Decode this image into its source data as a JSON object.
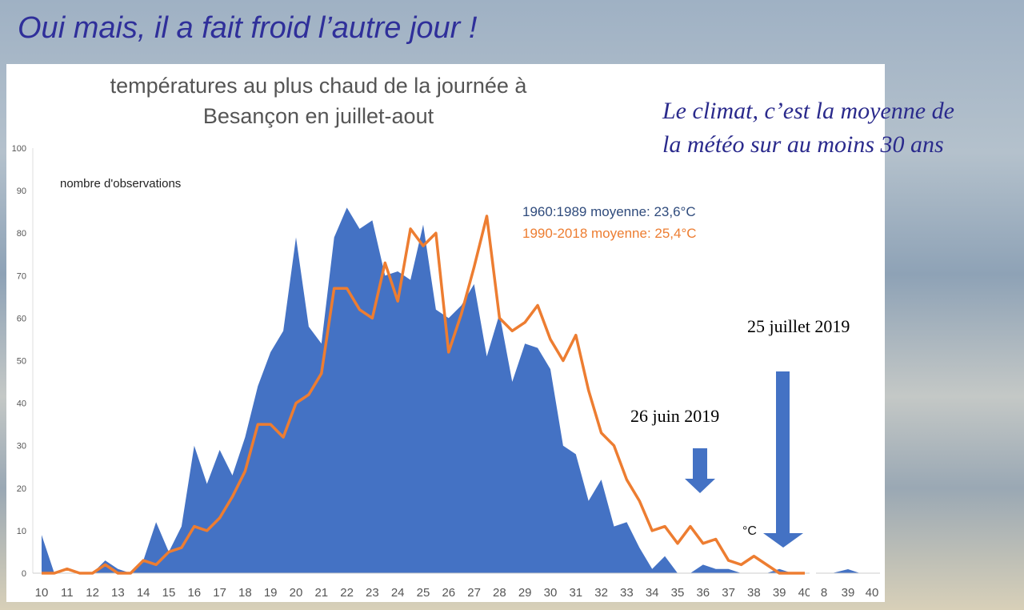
{
  "slide": {
    "title": "Oui mais, il a fait froid l’autre jour !",
    "quote_line1": "Le climat, c’est la moyenne de",
    "quote_line2": "la météo sur au moins 30 ans"
  },
  "chart_data": {
    "type": "area",
    "title_line1": "températures au plus chaud de la journée à",
    "title_line2": "Besançon en juillet-aout",
    "ylabel": "nombre d'observations",
    "xlabel": "°C",
    "ylim": [
      0,
      100
    ],
    "yticks": [
      0,
      10,
      20,
      30,
      40,
      50,
      60,
      70,
      80,
      90,
      100
    ],
    "xticks": [
      10,
      11,
      12,
      13,
      14,
      15,
      16,
      17,
      18,
      19,
      20,
      21,
      22,
      23,
      24,
      25,
      26,
      27,
      28,
      29,
      30,
      31,
      32,
      33,
      34,
      35,
      36,
      37,
      38,
      39,
      40
    ],
    "x": [
      10,
      10.5,
      11,
      11.5,
      12,
      12.5,
      13,
      13.5,
      14,
      14.5,
      15,
      15.5,
      16,
      16.5,
      17,
      17.5,
      18,
      18.5,
      19,
      19.5,
      20,
      20.5,
      21,
      21.5,
      22,
      22.5,
      23,
      23.5,
      24,
      24.5,
      25,
      25.5,
      26,
      26.5,
      27,
      27.5,
      28,
      28.5,
      29,
      29.5,
      30,
      30.5,
      31,
      31.5,
      32,
      32.5,
      33,
      33.5,
      34,
      34.5,
      35,
      35.5,
      36,
      36.5,
      37,
      37.5,
      38,
      38.5,
      39,
      39.5,
      40
    ],
    "series": [
      {
        "name": "1960:1989 moyenne: 23,6°C",
        "type": "area",
        "color": "#4472c4",
        "values": [
          9,
          0,
          0,
          0,
          0,
          3,
          1,
          0,
          3,
          12,
          5,
          11,
          30,
          21,
          29,
          23,
          32,
          44,
          52,
          57,
          79,
          58,
          54,
          79,
          86,
          81,
          83,
          70,
          71,
          69,
          82,
          62,
          60,
          63,
          68,
          51,
          61,
          45,
          54,
          53,
          48,
          30,
          28,
          17,
          22,
          11,
          12,
          6,
          1,
          4,
          0,
          0,
          2,
          1,
          1,
          0,
          0,
          0,
          1,
          0,
          0
        ]
      },
      {
        "name": "1990-2018 moyenne: 25,4°C",
        "type": "line",
        "color": "#ed7d31",
        "values": [
          0,
          0,
          1,
          0,
          0,
          2,
          0,
          0,
          3,
          2,
          5,
          6,
          11,
          10,
          13,
          18,
          24,
          35,
          35,
          32,
          40,
          42,
          47,
          67,
          67,
          62,
          60,
          73,
          64,
          81,
          77,
          80,
          52,
          61,
          72,
          84,
          60,
          57,
          59,
          63,
          55,
          50,
          56,
          43,
          33,
          30,
          22,
          17,
          10,
          11,
          7,
          11,
          7,
          8,
          3,
          2,
          4,
          2,
          0,
          0,
          0
        ]
      }
    ],
    "annotations": [
      {
        "text": "26 juin 2019",
        "x": 36
      },
      {
        "text": "25 juillet 2019",
        "x": 39
      }
    ],
    "stray_xticks": [
      "8",
      "39",
      "40"
    ]
  }
}
